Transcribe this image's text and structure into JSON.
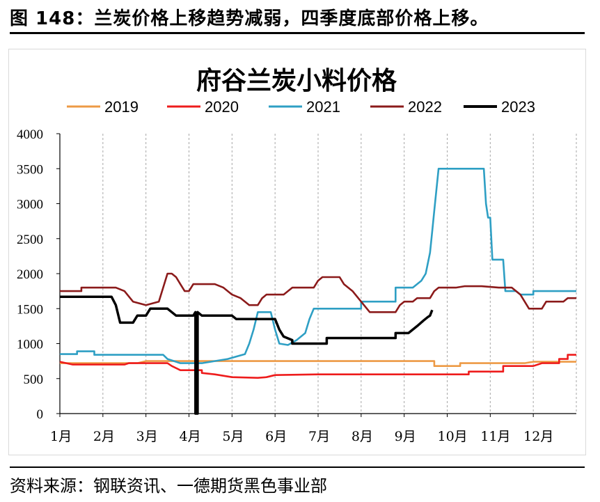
{
  "figure_title": "图 148：兰炭价格上移趋势减弱，四季度底部价格上移。",
  "source": "资料来源：钢联资讯、一德期货黑色事业部",
  "chart_data": {
    "type": "line",
    "title": "府谷兰炭小料价格",
    "xlabel": "",
    "ylabel": "",
    "x_ticks": [
      "1月",
      "2月",
      "3月",
      "4月",
      "5月",
      "6月",
      "7月",
      "8月",
      "9月",
      "10月",
      "11月",
      "12月"
    ],
    "xlim": [
      1,
      13
    ],
    "ylim": [
      0,
      4000
    ],
    "y_ticks": [
      0,
      500,
      1000,
      1500,
      2000,
      2500,
      3000,
      3500,
      4000
    ],
    "grid": "vertical-dashed",
    "legend_position": "top",
    "series": [
      {
        "name": "2019",
        "color": "#ed9a45",
        "points": [
          [
            1.0,
            720
          ],
          [
            1.3,
            720
          ],
          [
            2.0,
            720
          ],
          [
            2.8,
            720
          ],
          [
            3.0,
            750
          ],
          [
            5.0,
            750
          ],
          [
            7.0,
            750
          ],
          [
            8.0,
            750
          ],
          [
            9.0,
            750
          ],
          [
            9.7,
            750
          ],
          [
            9.7,
            680
          ],
          [
            10.3,
            680
          ],
          [
            10.3,
            720
          ],
          [
            11.0,
            720
          ],
          [
            11.8,
            720
          ],
          [
            12.0,
            740
          ],
          [
            13.0,
            740
          ]
        ]
      },
      {
        "name": "2020",
        "color": "#ee1c1c",
        "points": [
          [
            1.0,
            740
          ],
          [
            1.3,
            700
          ],
          [
            2.0,
            700
          ],
          [
            2.5,
            700
          ],
          [
            2.6,
            720
          ],
          [
            3.0,
            720
          ],
          [
            3.5,
            720
          ],
          [
            3.6,
            680
          ],
          [
            3.8,
            620
          ],
          [
            4.3,
            620
          ],
          [
            4.3,
            580
          ],
          [
            4.6,
            560
          ],
          [
            4.9,
            530
          ],
          [
            5.0,
            520
          ],
          [
            5.6,
            510
          ],
          [
            5.8,
            520
          ],
          [
            6.0,
            550
          ],
          [
            7.0,
            560
          ],
          [
            8.0,
            560
          ],
          [
            9.0,
            560
          ],
          [
            10.0,
            560
          ],
          [
            10.5,
            560
          ],
          [
            10.5,
            600
          ],
          [
            11.0,
            600
          ],
          [
            11.3,
            600
          ],
          [
            11.3,
            680
          ],
          [
            12.0,
            680
          ],
          [
            12.2,
            720
          ],
          [
            12.6,
            720
          ],
          [
            12.6,
            780
          ],
          [
            12.8,
            780
          ],
          [
            12.8,
            840
          ],
          [
            13.0,
            840
          ]
        ]
      },
      {
        "name": "2021",
        "color": "#2e9fc4",
        "points": [
          [
            1.0,
            850
          ],
          [
            1.4,
            850
          ],
          [
            1.4,
            890
          ],
          [
            1.8,
            890
          ],
          [
            1.8,
            840
          ],
          [
            2.5,
            840
          ],
          [
            2.8,
            840
          ],
          [
            3.0,
            840
          ],
          [
            3.4,
            840
          ],
          [
            3.5,
            780
          ],
          [
            3.8,
            720
          ],
          [
            4.1,
            720
          ],
          [
            4.3,
            720
          ],
          [
            4.5,
            740
          ],
          [
            4.9,
            780
          ],
          [
            5.3,
            850
          ],
          [
            5.4,
            1000
          ],
          [
            5.5,
            1200
          ],
          [
            5.6,
            1450
          ],
          [
            5.9,
            1450
          ],
          [
            6.0,
            1200
          ],
          [
            6.1,
            1000
          ],
          [
            6.3,
            980
          ],
          [
            6.5,
            1050
          ],
          [
            6.7,
            1150
          ],
          [
            6.8,
            1350
          ],
          [
            6.9,
            1500
          ],
          [
            7.5,
            1500
          ],
          [
            8.0,
            1500
          ],
          [
            8.0,
            1600
          ],
          [
            8.8,
            1600
          ],
          [
            8.8,
            1800
          ],
          [
            9.2,
            1800
          ],
          [
            9.3,
            1850
          ],
          [
            9.4,
            1900
          ],
          [
            9.5,
            2000
          ],
          [
            9.6,
            2300
          ],
          [
            9.65,
            2600
          ],
          [
            9.7,
            2900
          ],
          [
            9.75,
            3200
          ],
          [
            9.8,
            3500
          ],
          [
            10.5,
            3500
          ],
          [
            10.85,
            3500
          ],
          [
            10.9,
            3000
          ],
          [
            10.95,
            2800
          ],
          [
            11.0,
            2800
          ],
          [
            11.05,
            2200
          ],
          [
            11.3,
            2200
          ],
          [
            11.35,
            1750
          ],
          [
            11.6,
            1750
          ],
          [
            11.7,
            1700
          ],
          [
            12.0,
            1700
          ],
          [
            12.0,
            1750
          ],
          [
            12.5,
            1750
          ],
          [
            13.0,
            1750
          ]
        ]
      },
      {
        "name": "2022",
        "color": "#8b1a1a",
        "points": [
          [
            1.0,
            1750
          ],
          [
            1.5,
            1750
          ],
          [
            1.5,
            1800
          ],
          [
            2.3,
            1800
          ],
          [
            2.5,
            1750
          ],
          [
            2.7,
            1600
          ],
          [
            3.0,
            1550
          ],
          [
            3.3,
            1600
          ],
          [
            3.4,
            1800
          ],
          [
            3.5,
            2000
          ],
          [
            3.6,
            2000
          ],
          [
            3.7,
            1950
          ],
          [
            3.8,
            1850
          ],
          [
            3.9,
            1750
          ],
          [
            4.0,
            1750
          ],
          [
            4.1,
            1850
          ],
          [
            4.6,
            1850
          ],
          [
            4.8,
            1800
          ],
          [
            5.0,
            1700
          ],
          [
            5.2,
            1650
          ],
          [
            5.4,
            1550
          ],
          [
            5.6,
            1550
          ],
          [
            5.7,
            1650
          ],
          [
            5.8,
            1700
          ],
          [
            6.2,
            1700
          ],
          [
            6.4,
            1800
          ],
          [
            6.9,
            1800
          ],
          [
            7.0,
            1900
          ],
          [
            7.1,
            1950
          ],
          [
            7.5,
            1950
          ],
          [
            7.6,
            1850
          ],
          [
            7.8,
            1750
          ],
          [
            8.0,
            1600
          ],
          [
            8.2,
            1450
          ],
          [
            8.8,
            1450
          ],
          [
            8.9,
            1550
          ],
          [
            9.0,
            1600
          ],
          [
            9.2,
            1600
          ],
          [
            9.3,
            1650
          ],
          [
            9.6,
            1650
          ],
          [
            9.7,
            1750
          ],
          [
            9.8,
            1800
          ],
          [
            10.2,
            1800
          ],
          [
            10.4,
            1820
          ],
          [
            10.8,
            1820
          ],
          [
            11.2,
            1800
          ],
          [
            11.5,
            1800
          ],
          [
            11.7,
            1700
          ],
          [
            11.8,
            1600
          ],
          [
            11.9,
            1500
          ],
          [
            12.2,
            1500
          ],
          [
            12.3,
            1600
          ],
          [
            12.7,
            1600
          ],
          [
            12.8,
            1650
          ],
          [
            13.0,
            1650
          ]
        ]
      },
      {
        "name": "2023",
        "color": "#000000",
        "points": [
          [
            1.0,
            1670
          ],
          [
            2.2,
            1670
          ],
          [
            2.3,
            1550
          ],
          [
            2.4,
            1300
          ],
          [
            2.7,
            1300
          ],
          [
            2.8,
            1400
          ],
          [
            3.0,
            1400
          ],
          [
            3.1,
            1500
          ],
          [
            3.5,
            1500
          ],
          [
            3.6,
            1450
          ],
          [
            3.7,
            1400
          ],
          [
            4.1,
            1400
          ],
          [
            4.15,
            1450
          ],
          [
            4.15,
            0
          ],
          [
            4.2,
            0
          ],
          [
            4.2,
            1450
          ],
          [
            4.3,
            1400
          ],
          [
            5.0,
            1400
          ],
          [
            5.1,
            1350
          ],
          [
            6.0,
            1350
          ],
          [
            6.1,
            1200
          ],
          [
            6.2,
            1100
          ],
          [
            6.4,
            1050
          ],
          [
            6.4,
            1000
          ],
          [
            7.2,
            1000
          ],
          [
            7.2,
            1080
          ],
          [
            8.0,
            1080
          ],
          [
            8.8,
            1080
          ],
          [
            8.8,
            1150
          ],
          [
            9.1,
            1150
          ],
          [
            9.2,
            1200
          ],
          [
            9.3,
            1250
          ],
          [
            9.45,
            1330
          ],
          [
            9.55,
            1380
          ],
          [
            9.6,
            1400
          ],
          [
            9.65,
            1480
          ]
        ]
      }
    ]
  }
}
